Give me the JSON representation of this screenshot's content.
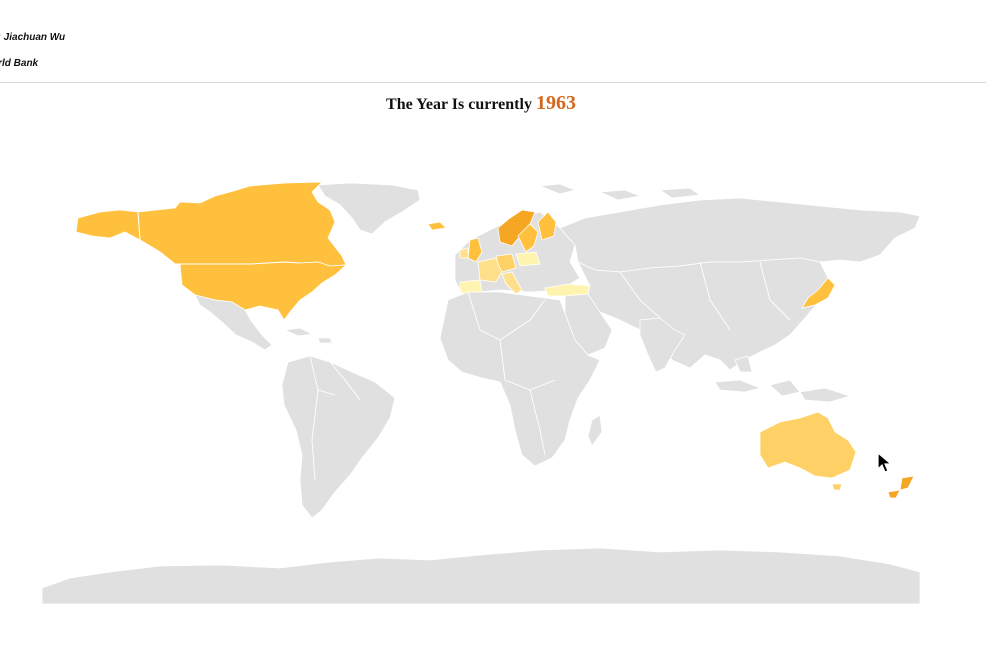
{
  "header": {
    "author_line": "y: Jiachuan Wu",
    "source_line": "orld Bank"
  },
  "title": {
    "prefix": "The Year Is currently",
    "year": "1963"
  },
  "legend_colors": {
    "no_data": "#e0e0e0",
    "level_1": "#fff3b0",
    "level_2": "#ffe08a",
    "level_3": "#ffd066",
    "level_4": "#ffc03e",
    "level_5": "#f5a623"
  }
}
